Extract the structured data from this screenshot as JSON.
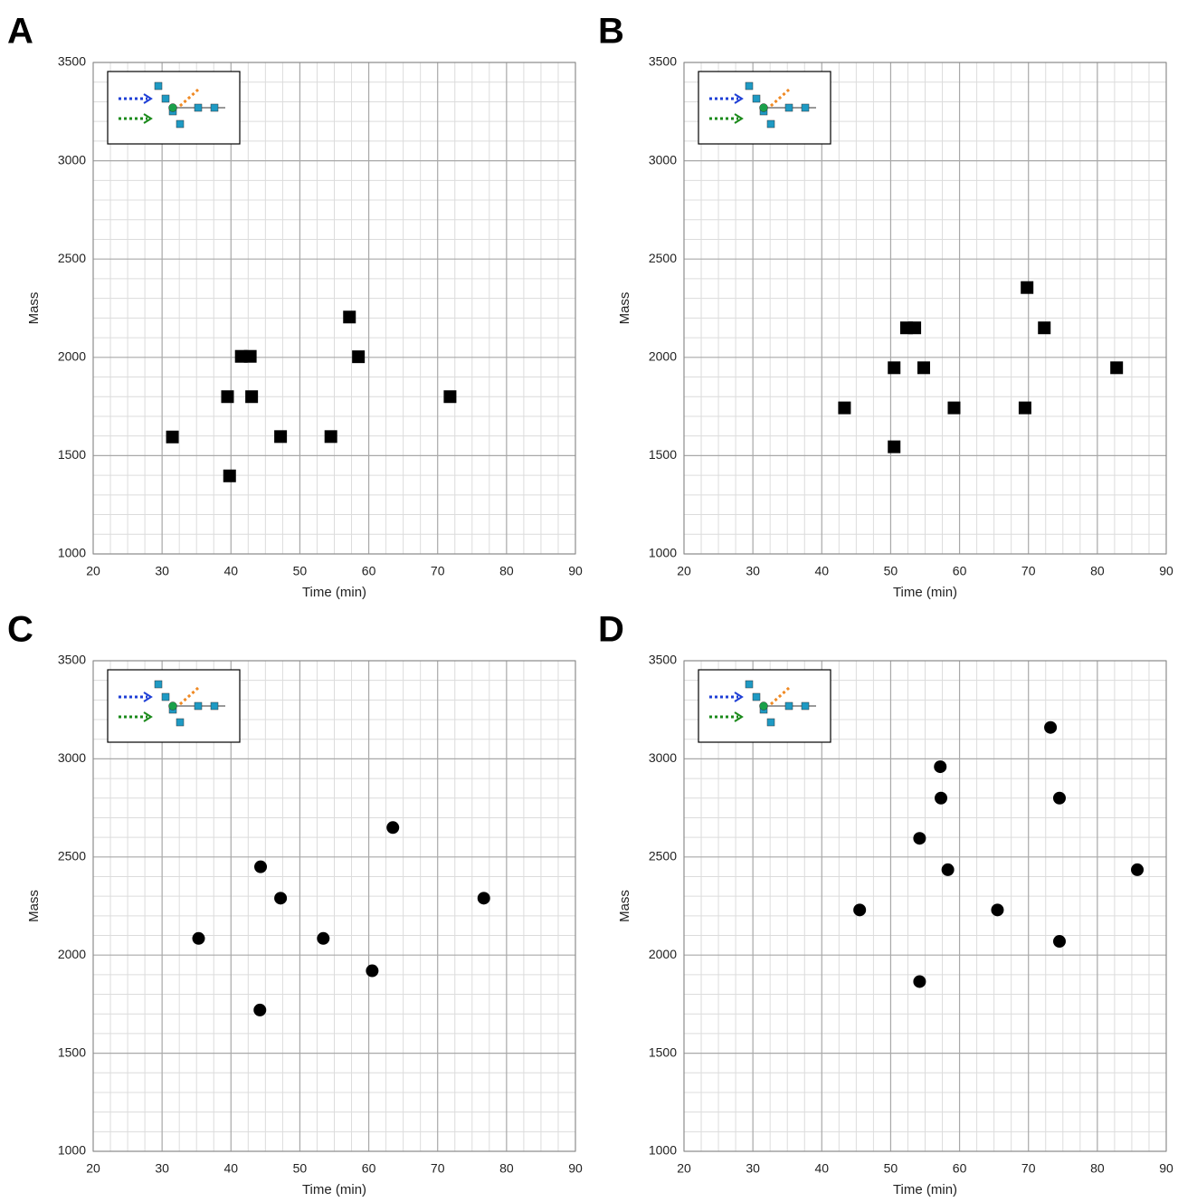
{
  "chart_data": [
    {
      "type": "scatter",
      "panel_label": "A",
      "marker": "square",
      "color": "#000000",
      "xlabel": "Time (min)",
      "ylabel": "Mass",
      "x": [
        31.5,
        39.5,
        43,
        41.5,
        42.8,
        39.8,
        47.2,
        54.5,
        57.2,
        58.5,
        71.8
      ],
      "values": [
        1595,
        1800,
        1800,
        2005,
        2005,
        1397,
        1597,
        1597,
        2205,
        2003,
        1800
      ],
      "xlim": [
        20,
        90
      ],
      "ylim": [
        1000,
        3500
      ],
      "xticks": [
        20,
        30,
        40,
        50,
        60,
        70,
        80,
        90
      ],
      "yticks": [
        1000,
        1500,
        2000,
        2500,
        3000,
        3500
      ],
      "grid": true
    },
    {
      "type": "scatter",
      "panel_label": "B",
      "marker": "square",
      "color": "#000000",
      "xlabel": "Time (min)",
      "ylabel": "Mass",
      "x": [
        43.3,
        50.5,
        54.8,
        52.3,
        53.5,
        50.5,
        59.2,
        69.5,
        69.8,
        72.3,
        82.8
      ],
      "values": [
        1743,
        1947,
        1947,
        2150,
        2150,
        1545,
        1743,
        1743,
        2355,
        2150,
        1947
      ],
      "xlim": [
        20,
        90
      ],
      "ylim": [
        1000,
        3500
      ],
      "xticks": [
        20,
        30,
        40,
        50,
        60,
        70,
        80,
        90
      ],
      "yticks": [
        1000,
        1500,
        2000,
        2500,
        3000,
        3500
      ],
      "grid": true
    },
    {
      "type": "scatter",
      "panel_label": "C",
      "marker": "circle",
      "color": "#000000",
      "xlabel": "Time (min)",
      "ylabel": "Mass",
      "x": [
        35.3,
        44.3,
        47.2,
        63.5,
        44.2,
        53.4,
        60.5,
        76.7
      ],
      "values": [
        2085,
        2450,
        2290,
        2650,
        1720,
        2085,
        1920,
        2290
      ],
      "xlim": [
        20,
        90
      ],
      "ylim": [
        1000,
        3500
      ],
      "xticks": [
        20,
        30,
        40,
        50,
        60,
        70,
        80,
        90
      ],
      "yticks": [
        1000,
        1500,
        2000,
        2500,
        3000,
        3500
      ],
      "grid": true
    },
    {
      "type": "scatter",
      "panel_label": "D",
      "marker": "circle",
      "color": "#000000",
      "xlabel": "Time (min)",
      "ylabel": "Mass",
      "x": [
        45.5,
        54.2,
        58.3,
        74.5,
        54.2,
        65.5,
        74.5,
        85.8,
        57.3,
        57.2,
        73.2
      ],
      "values": [
        2230,
        2595,
        2435,
        2800,
        1865,
        2230,
        2070,
        2435,
        2800,
        2960,
        3160
      ],
      "xlim": [
        20,
        90
      ],
      "ylim": [
        1000,
        3500
      ],
      "xticks": [
        20,
        30,
        40,
        50,
        60,
        70,
        80,
        90
      ],
      "yticks": [
        1000,
        1500,
        2000,
        2500,
        3000,
        3500
      ],
      "grid": true
    }
  ]
}
